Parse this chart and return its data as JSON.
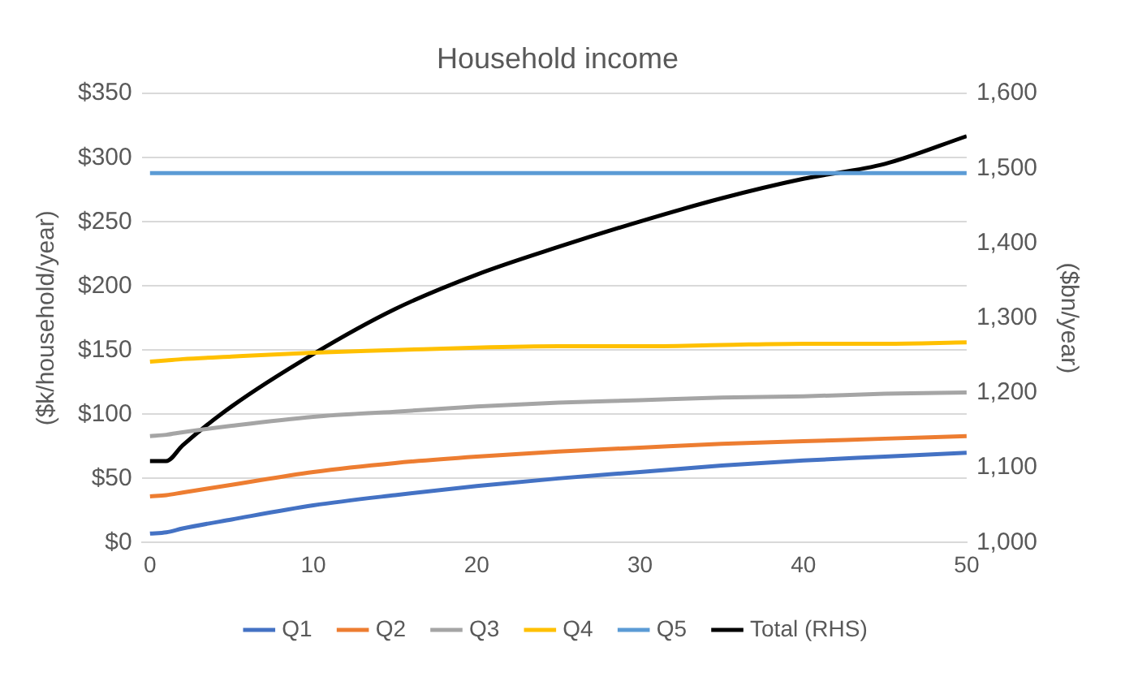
{
  "chart_data": {
    "type": "line",
    "title": "Household income",
    "ylabel": "($k/household/year)",
    "y2label": "($bn/year)",
    "x": [
      0,
      1,
      2,
      5,
      10,
      15,
      20,
      25,
      30,
      35,
      40,
      45,
      50
    ],
    "series": [
      {
        "name": "Q1",
        "color": "#4472c4",
        "values": [
          7,
          8,
          11,
          18,
          29,
          37,
          44,
          50,
          55,
          60,
          64,
          67,
          70
        ]
      },
      {
        "name": "Q2",
        "color": "#ed7d31",
        "values": [
          36,
          37,
          39,
          45,
          55,
          62,
          67,
          71,
          74,
          77,
          79,
          81,
          83
        ]
      },
      {
        "name": "Q3",
        "color": "#a5a5a5",
        "values": [
          83,
          84,
          86,
          91,
          98,
          102,
          106,
          109,
          111,
          113,
          114,
          116,
          117
        ]
      },
      {
        "name": "Q4",
        "color": "#ffc000",
        "values": [
          141,
          142,
          143,
          145,
          148,
          150,
          152,
          153,
          153,
          154,
          155,
          155,
          156
        ]
      },
      {
        "name": "Q5",
        "color": "#5b9bd5",
        "values": [
          288,
          288,
          288,
          288,
          288,
          288,
          288,
          288,
          288,
          288,
          288,
          288,
          288
        ]
      },
      {
        "name": "Total (RHS)",
        "color": "#000000",
        "axis": "y2",
        "values": [
          1109,
          1109,
          1130,
          1182,
          1252,
          1312,
          1358,
          1395,
          1429,
          1460,
          1486,
          1506,
          1543
        ]
      }
    ],
    "xlim": [
      -0.5,
      50
    ],
    "xticks": [
      0,
      10,
      20,
      30,
      40,
      50
    ],
    "ylim": [
      0,
      350
    ],
    "yticks": [
      {
        "value": 0,
        "label": "$0"
      },
      {
        "value": 50,
        "label": "$50"
      },
      {
        "value": 100,
        "label": "$100"
      },
      {
        "value": 150,
        "label": "$150"
      },
      {
        "value": 200,
        "label": "$200"
      },
      {
        "value": 250,
        "label": "$250"
      },
      {
        "value": 300,
        "label": "$300"
      },
      {
        "value": 350,
        "label": "$350"
      }
    ],
    "y2lim": [
      1000,
      1600
    ],
    "y2ticks": [
      {
        "value": 1000,
        "label": "1,000"
      },
      {
        "value": 1100,
        "label": "1,100"
      },
      {
        "value": 1200,
        "label": "1,200"
      },
      {
        "value": 1300,
        "label": "1,300"
      },
      {
        "value": 1400,
        "label": "1,400"
      },
      {
        "value": 1500,
        "label": "1,500"
      },
      {
        "value": 1600,
        "label": "1,600"
      }
    ],
    "grid": "y",
    "legend": "bottom",
    "marker": "none",
    "line_style": "solid"
  }
}
